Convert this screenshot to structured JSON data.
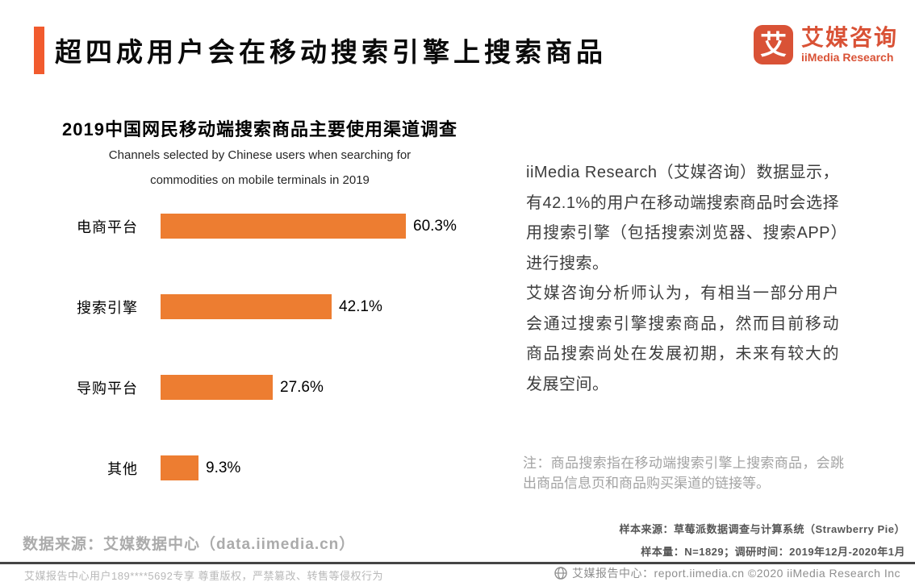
{
  "header": {
    "title": "超四成用户会在移动搜索引擎上搜索商品",
    "logo": {
      "icon_char": "艾",
      "brand_cn": "艾媒咨询",
      "brand_en": "iiMedia Research"
    }
  },
  "chart": {
    "title": "2019中国网民移动端搜索商品主要使用渠道调查",
    "subtitle_line1": "Channels selected by Chinese users when searching for",
    "subtitle_line2": "commodities on mobile terminals in 2019"
  },
  "chart_data": {
    "type": "bar",
    "orientation": "horizontal",
    "title": "2019中国网民移动端搜索商品主要使用渠道调查",
    "subtitle": "Channels selected by Chinese users when searching for commodities on mobile terminals in 2019",
    "categories": [
      "电商平台",
      "搜索引擎",
      "导购平台",
      "其他"
    ],
    "values": [
      60.3,
      42.1,
      27.6,
      9.3
    ],
    "value_labels": [
      "60.3%",
      "42.1%",
      "27.6%",
      "9.3%"
    ],
    "unit": "%",
    "xlim": [
      0,
      70
    ],
    "grid": false,
    "value_label_position": "end",
    "bar_color": "#ED7D31"
  },
  "analysis": {
    "paragraph1": "iiMedia Research（艾媒咨询）数据显示，有42.1%的用户在移动端搜索商品时会选择用搜索引擎（包括搜索浏览器、搜索APP）进行搜索。",
    "paragraph2": "艾媒咨询分析师认为，有相当一部分用户会通过搜索引擎搜索商品，然而目前移动商品搜索尚处在发展初期，未来有较大的发展空间。",
    "note": "注：商品搜索指在移动端搜索引擎上搜索商品，会跳出商品信息页和商品购买渠道的链接等。"
  },
  "footer_info": {
    "data_source": "数据来源：艾媒数据中心（data.iimedia.cn）",
    "sample_source": "样本来源：草莓派数据调查与计算系统（Strawberry Pie）",
    "sample_size": "样本量：N=1829；调研时间：2019年12月-2020年1月"
  },
  "footer_bar": {
    "left": "艾媒报告中心用户189****5692专享 尊重版权，严禁篡改、转售等侵权行为",
    "right": "艾媒报告中心：report.iimedia.cn ©2020 iiMedia Research Inc"
  },
  "colors": {
    "accent": "#F15B2E",
    "logo": "#D95236",
    "bar": "#ED7D31"
  }
}
